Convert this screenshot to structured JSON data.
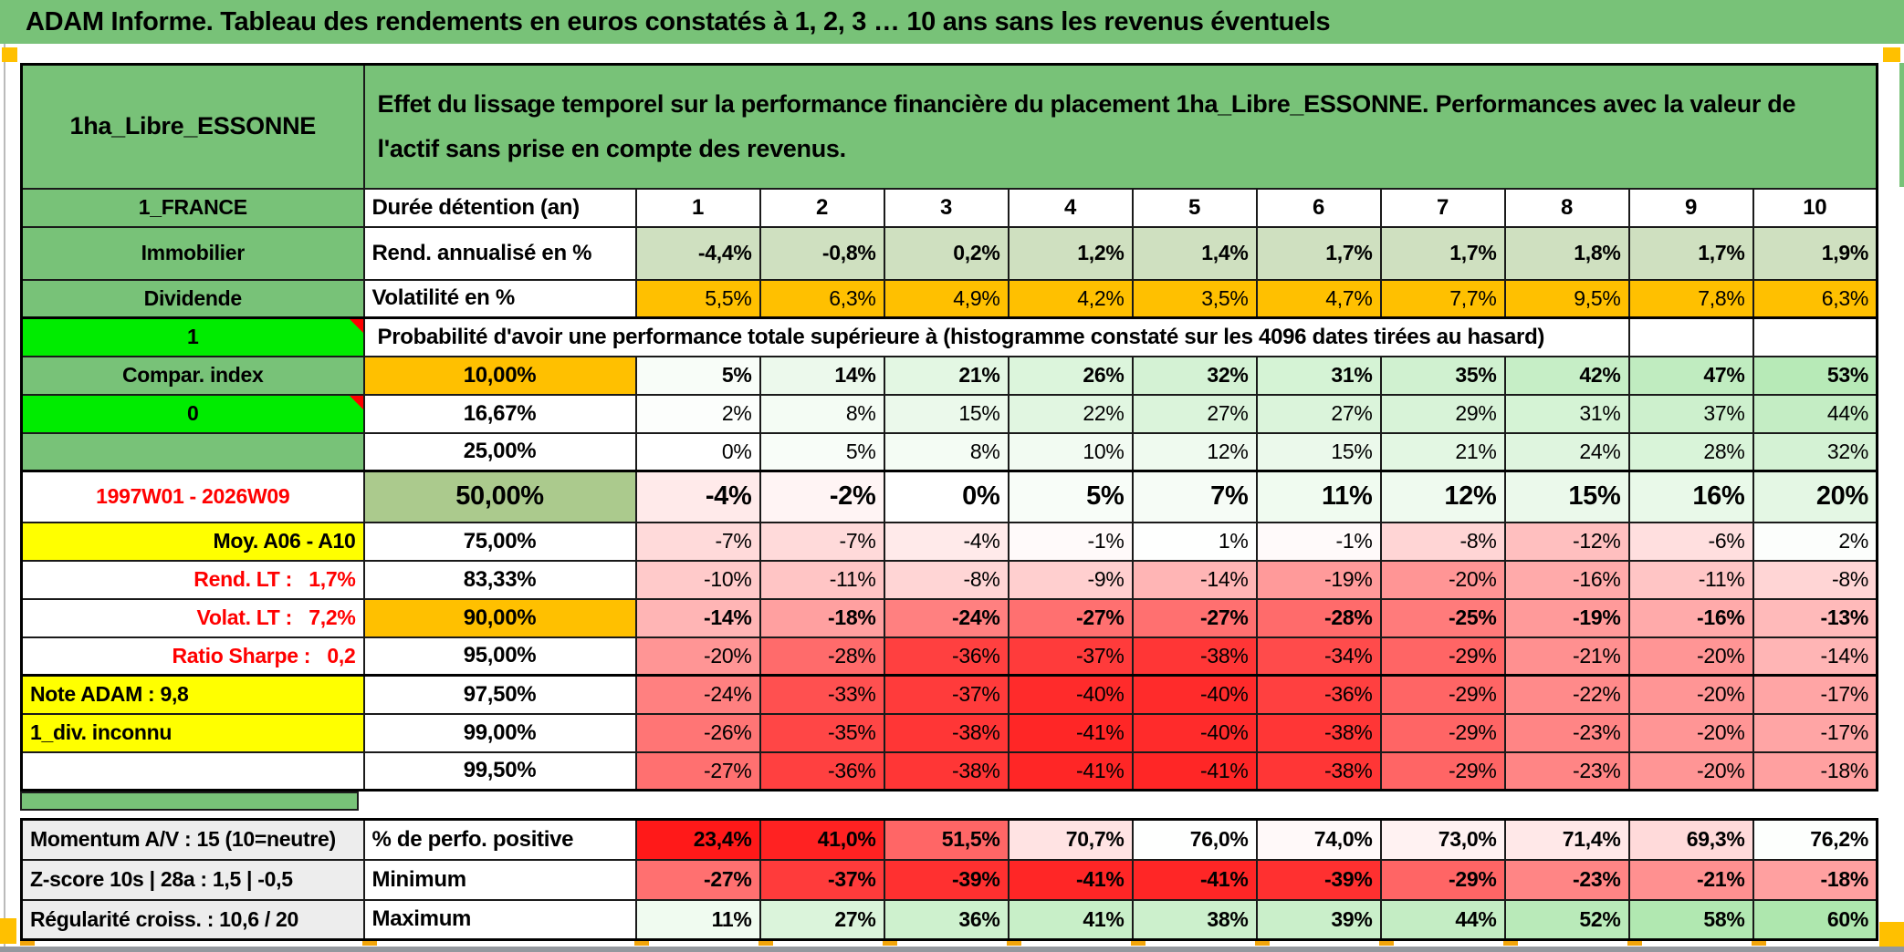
{
  "title": "ADAM Informe. Tableau des rendements en euros constatés à 1, 2, 3 … 10 ans sans les revenus éventuels",
  "colors": {
    "green": "#78C278",
    "bright_green": "#00EC00",
    "orange": "#FFC000",
    "yellow": "#FFFF00",
    "sage_50pct": "#ABCA8D",
    "light_green_row": "#CFE0C0",
    "label_gray": "#EDEDED",
    "red_text": "#FF0000",
    "bottom_strip": "#94989E"
  },
  "table": {
    "corner_label": "1ha_Libre_ESSONNE",
    "description": "Effet du lissage temporel sur la performance financière du placement 1ha_Libre_ESSONNE. Performances avec la valeur de l'actif sans prise en compte des revenus.",
    "duration": {
      "sidebar": "1_FRANCE",
      "label": "Durée détention (an)",
      "columns": [
        "1",
        "2",
        "3",
        "4",
        "5",
        "6",
        "7",
        "8",
        "9",
        "10"
      ]
    },
    "metric_rows": [
      {
        "sidebar": "Immobilier",
        "label": "Rend. annualisé en %",
        "values": [
          "-4,4%",
          "-0,8%",
          "0,2%",
          "1,2%",
          "1,4%",
          "1,7%",
          "1,7%",
          "1,8%",
          "1,7%",
          "1,9%"
        ]
      },
      {
        "sidebar": "Dividende",
        "label": "Volatilité en %",
        "values": [
          "5,5%",
          "6,3%",
          "4,9%",
          "4,2%",
          "3,5%",
          "4,7%",
          "7,7%",
          "9,5%",
          "7,8%",
          "6,3%"
        ]
      }
    ],
    "probability": {
      "sidebar": "1",
      "note": "Probabilité d'avoir une performance totale supérieure à (histogramme constaté sur les 4096 dates tirées au hasard)",
      "rows": [
        {
          "sidebar": "Compar. index",
          "percentile": "10,00%",
          "values": [
            "5%",
            "14%",
            "21%",
            "26%",
            "32%",
            "31%",
            "35%",
            "42%",
            "47%",
            "53%"
          ]
        },
        {
          "sidebar": "0",
          "percentile": "16,67%",
          "values": [
            "2%",
            "8%",
            "15%",
            "22%",
            "27%",
            "27%",
            "29%",
            "31%",
            "37%",
            "44%"
          ]
        },
        {
          "sidebar": "",
          "percentile": "25,00%",
          "values": [
            "0%",
            "5%",
            "8%",
            "10%",
            "12%",
            "15%",
            "21%",
            "24%",
            "28%",
            "32%"
          ]
        },
        {
          "sidebar": "1997W01 - 2026W09",
          "percentile": "50,00%",
          "values": [
            "-4%",
            "-2%",
            "0%",
            "5%",
            "7%",
            "11%",
            "12%",
            "15%",
            "16%",
            "20%"
          ]
        },
        {
          "sidebar": "Moy. A06 - A10",
          "percentile": "75,00%",
          "values": [
            "-7%",
            "-7%",
            "-4%",
            "-1%",
            "1%",
            "-1%",
            "-8%",
            "-12%",
            "-6%",
            "2%"
          ]
        },
        {
          "sidebar": "Rend. LT :   1,7%",
          "percentile": "83,33%",
          "values": [
            "-10%",
            "-11%",
            "-8%",
            "-9%",
            "-14%",
            "-19%",
            "-20%",
            "-16%",
            "-11%",
            "-8%"
          ]
        },
        {
          "sidebar": "Volat. LT :   7,2%",
          "percentile": "90,00%",
          "values": [
            "-14%",
            "-18%",
            "-24%",
            "-27%",
            "-27%",
            "-28%",
            "-25%",
            "-19%",
            "-16%",
            "-13%"
          ]
        },
        {
          "sidebar": "Ratio Sharpe :   0,2",
          "percentile": "95,00%",
          "values": [
            "-20%",
            "-28%",
            "-36%",
            "-37%",
            "-38%",
            "-34%",
            "-29%",
            "-21%",
            "-20%",
            "-14%"
          ]
        },
        {
          "sidebar": "Note ADAM : 9,8",
          "percentile": "97,50%",
          "values": [
            "-24%",
            "-33%",
            "-37%",
            "-40%",
            "-40%",
            "-36%",
            "-29%",
            "-22%",
            "-20%",
            "-17%"
          ]
        },
        {
          "sidebar": "1_div. inconnu",
          "percentile": "99,00%",
          "values": [
            "-26%",
            "-35%",
            "-38%",
            "-41%",
            "-40%",
            "-38%",
            "-29%",
            "-23%",
            "-20%",
            "-17%"
          ]
        },
        {
          "sidebar": "",
          "percentile": "99,50%",
          "values": [
            "-27%",
            "-36%",
            "-38%",
            "-41%",
            "-41%",
            "-38%",
            "-29%",
            "-23%",
            "-20%",
            "-18%"
          ]
        }
      ]
    },
    "summary_rows": [
      {
        "sidebar": "Momentum A/V : 15 (10=neutre)",
        "label": "% de perfo. positive",
        "values": [
          "23,4%",
          "41,0%",
          "51,5%",
          "70,7%",
          "76,0%",
          "74,0%",
          "73,0%",
          "71,4%",
          "69,3%",
          "76,2%"
        ]
      },
      {
        "sidebar": "Z-score 10s | 28a : 1,5 | -0,5",
        "label": "Minimum",
        "values": [
          "-27%",
          "-37%",
          "-39%",
          "-41%",
          "-41%",
          "-39%",
          "-29%",
          "-23%",
          "-21%",
          "-18%"
        ]
      },
      {
        "sidebar": "Régularité croiss. : 10,6 / 20",
        "label": "Maximum",
        "values": [
          "11%",
          "27%",
          "36%",
          "41%",
          "38%",
          "39%",
          "44%",
          "52%",
          "58%",
          "60%"
        ]
      }
    ]
  }
}
